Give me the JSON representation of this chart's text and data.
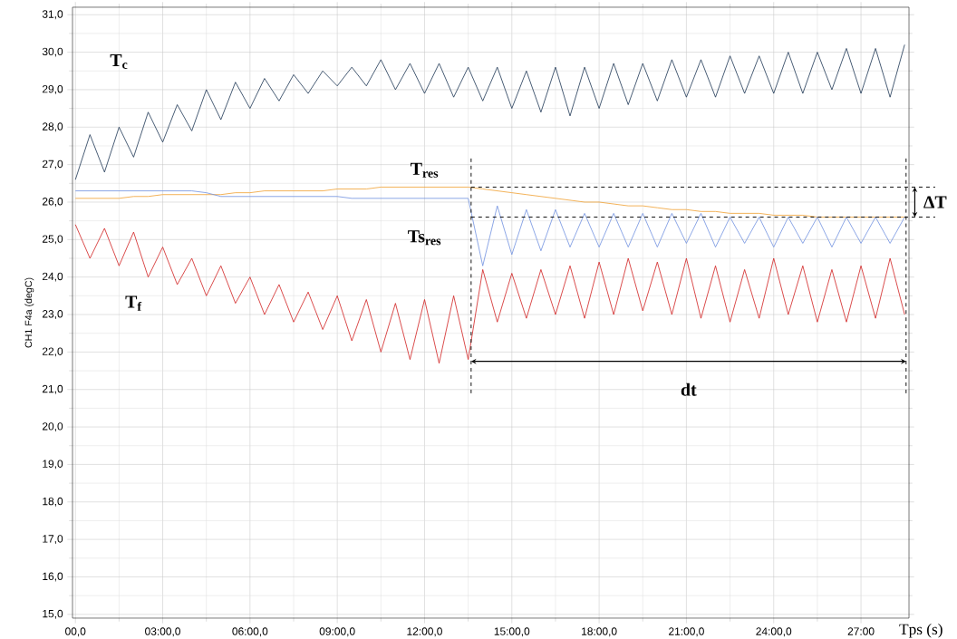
{
  "chart_data": {
    "type": "line",
    "xlabel": "Tps (s)",
    "ylabel": "CH1 F4a (degC)",
    "x": [
      0,
      0.5,
      1,
      1.5,
      2,
      2.5,
      3,
      3.5,
      4,
      4.5,
      5,
      5.5,
      6,
      6.5,
      7,
      7.5,
      8,
      8.5,
      9,
      9.5,
      10,
      10.5,
      11,
      11.5,
      12,
      12.5,
      13,
      13.5,
      14,
      14.5,
      15,
      15.5,
      16,
      16.5,
      17,
      17.5,
      18,
      18.5,
      19,
      19.5,
      20,
      20.5,
      21,
      21.5,
      22,
      22.5,
      23,
      23.5,
      24,
      24.5,
      25,
      25.5,
      26,
      26.5,
      27,
      27.5,
      28,
      28.5
    ],
    "series": [
      {
        "name": "T$_{c}$",
        "color": "#1c3553",
        "values": [
          26.6,
          27.8,
          26.8,
          28.0,
          27.2,
          28.4,
          27.6,
          28.6,
          27.9,
          29.0,
          28.2,
          29.2,
          28.5,
          29.3,
          28.7,
          29.4,
          28.9,
          29.5,
          29.1,
          29.6,
          29.1,
          29.8,
          29.0,
          29.7,
          28.9,
          29.7,
          28.8,
          29.6,
          28.7,
          29.6,
          28.5,
          29.5,
          28.4,
          29.6,
          28.3,
          29.6,
          28.5,
          29.7,
          28.6,
          29.7,
          28.7,
          29.8,
          28.8,
          29.8,
          28.8,
          29.9,
          28.9,
          29.9,
          28.9,
          30.0,
          28.9,
          30.0,
          29.0,
          30.1,
          28.9,
          30.1,
          28.8,
          30.2
        ]
      },
      {
        "name": "T$_{res}$",
        "color": "#f0a030",
        "values": [
          26.1,
          26.1,
          26.1,
          26.1,
          26.15,
          26.15,
          26.2,
          26.2,
          26.2,
          26.2,
          26.2,
          26.25,
          26.25,
          26.3,
          26.3,
          26.3,
          26.3,
          26.3,
          26.35,
          26.35,
          26.35,
          26.4,
          26.4,
          26.4,
          26.4,
          26.4,
          26.4,
          26.4,
          26.35,
          26.3,
          26.25,
          26.2,
          26.15,
          26.1,
          26.05,
          26.0,
          26.0,
          25.95,
          25.9,
          25.9,
          25.85,
          25.8,
          25.8,
          25.75,
          25.75,
          25.7,
          25.7,
          25.7,
          25.65,
          25.65,
          25.65,
          25.6,
          25.6,
          25.6,
          25.6,
          25.6,
          25.6,
          25.6
        ]
      },
      {
        "name": "Ts$_{res}$",
        "color": "#7090e0",
        "values": [
          26.3,
          26.3,
          26.3,
          26.3,
          26.3,
          26.3,
          26.3,
          26.3,
          26.3,
          26.25,
          26.15,
          26.15,
          26.15,
          26.15,
          26.15,
          26.15,
          26.15,
          26.15,
          26.15,
          26.1,
          26.1,
          26.1,
          26.1,
          26.1,
          26.1,
          26.1,
          26.1,
          26.1,
          24.3,
          25.9,
          24.6,
          25.8,
          24.7,
          25.8,
          24.8,
          25.7,
          24.8,
          25.7,
          24.8,
          25.7,
          24.8,
          25.7,
          24.9,
          25.7,
          24.8,
          25.6,
          24.9,
          25.6,
          24.8,
          25.6,
          24.9,
          25.6,
          24.8,
          25.6,
          24.9,
          25.6,
          24.9,
          25.6
        ]
      },
      {
        "name": "T$_{f}$",
        "color": "#d02020",
        "values": [
          25.4,
          24.5,
          25.3,
          24.3,
          25.2,
          24.0,
          24.8,
          23.8,
          24.5,
          23.5,
          24.3,
          23.3,
          24.0,
          23.0,
          23.8,
          22.8,
          23.6,
          22.6,
          23.5,
          22.3,
          23.4,
          22.0,
          23.3,
          21.8,
          23.4,
          21.7,
          23.5,
          21.8,
          24.2,
          22.8,
          24.1,
          22.9,
          24.2,
          23.0,
          24.3,
          22.9,
          24.4,
          23.0,
          24.5,
          23.1,
          24.4,
          23.0,
          24.5,
          22.9,
          24.3,
          22.8,
          24.2,
          22.9,
          24.5,
          23.0,
          24.3,
          22.8,
          24.2,
          22.8,
          24.3,
          22.9,
          24.5,
          23.0
        ]
      }
    ],
    "xlim": [
      -0.1,
      28.65
    ],
    "ylim": [
      14.9,
      31.2
    ],
    "xticks": [
      {
        "value": 0,
        "label": "00,0"
      },
      {
        "value": 3,
        "label": "03:00,0"
      },
      {
        "value": 6,
        "label": "06:00,0"
      },
      {
        "value": 9,
        "label": "09:00,0"
      },
      {
        "value": 12,
        "label": "12:00,0"
      },
      {
        "value": 15,
        "label": "15:00,0"
      },
      {
        "value": 18,
        "label": "18:00,0"
      },
      {
        "value": 21,
        "label": "21:00,0"
      },
      {
        "value": 24,
        "label": "24:00,0"
      },
      {
        "value": 27,
        "label": "27:00"
      }
    ],
    "yticks": [
      {
        "value": 15,
        "label": "15,0"
      },
      {
        "value": 16,
        "label": "16,0"
      },
      {
        "value": 17,
        "label": "17,0"
      },
      {
        "value": 18,
        "label": "18,0"
      },
      {
        "value": 19,
        "label": "19,0"
      },
      {
        "value": 20,
        "label": "20,0"
      },
      {
        "value": 21,
        "label": "21,0"
      },
      {
        "value": 22,
        "label": "22,0"
      },
      {
        "value": 23,
        "label": "23,0"
      },
      {
        "value": 24,
        "label": "24,0"
      },
      {
        "value": 25,
        "label": "25,0"
      },
      {
        "value": 26,
        "label": "26,0"
      },
      {
        "value": 27,
        "label": "27,0"
      },
      {
        "value": 28,
        "label": "28,0"
      },
      {
        "value": 29,
        "label": "29,0"
      },
      {
        "value": 30,
        "label": "30,0"
      },
      {
        "value": 31,
        "label": "31,0"
      }
    ],
    "ref_lines": [
      {
        "axis": "x",
        "value": 13.6,
        "color": "#000000",
        "line_style": "dashed"
      },
      {
        "axis": "x",
        "value": 28.55,
        "color": "#000000",
        "line_style": "dashed"
      },
      {
        "axis": "y",
        "value": 26.4,
        "color": "#000000",
        "line_style": "dashed"
      },
      {
        "axis": "y",
        "value": 25.6,
        "color": "#000000",
        "line_style": "dashed"
      }
    ],
    "annotations": [
      "dt",
      "ΔT"
    ],
    "grid": true,
    "marker": "none",
    "line_style": "solid"
  }
}
